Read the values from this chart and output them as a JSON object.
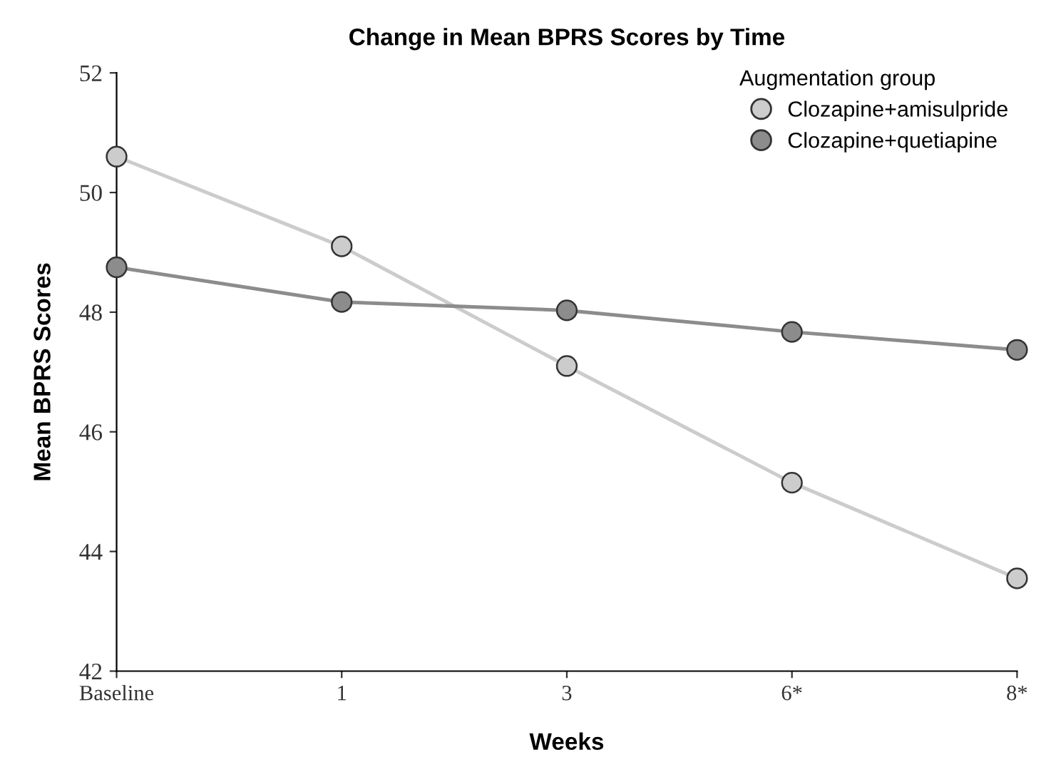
{
  "chart_data": {
    "type": "line",
    "title": "Change in Mean BPRS Scores by Time",
    "xlabel": "Weeks",
    "ylabel": "Mean BPRS Scores",
    "legend_title": "Augmentation group",
    "categories": [
      "Baseline",
      "1",
      "3",
      "6*",
      "8*"
    ],
    "series": [
      {
        "name": "Clozapine+amisulpride",
        "color": "#cccccc",
        "values": [
          50.6,
          49.1,
          47.1,
          45.15,
          43.55
        ]
      },
      {
        "name": "Clozapine+quetiapine",
        "color": "#8c8c8c",
        "values": [
          48.75,
          48.17,
          48.03,
          47.67,
          47.37
        ]
      }
    ],
    "ylim": [
      42,
      52
    ],
    "yticks": [
      42,
      44,
      46,
      48,
      50,
      52
    ],
    "grid": false,
    "legend": "top right",
    "marker": "circle",
    "line_style": "solid"
  }
}
